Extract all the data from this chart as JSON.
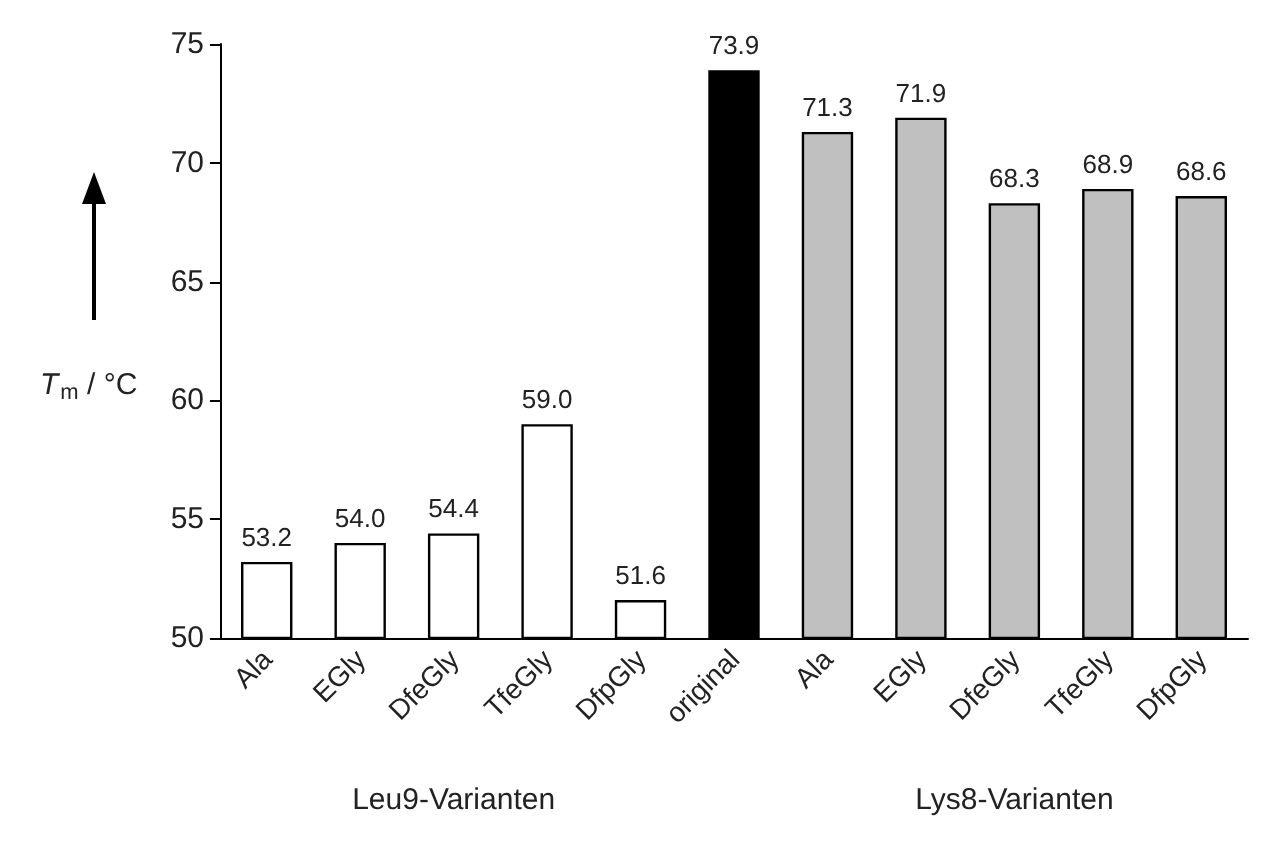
{
  "chart_data": {
    "type": "bar",
    "ylabel": "T$_{m}$ / °C",
    "categories": [
      "Ala",
      "EGly",
      "DfeGly",
      "TfeGly",
      "DfpGly",
      "original",
      "Ala",
      "EGly",
      "DfeGly",
      "TfeGly",
      "DfpGly"
    ],
    "values": [
      53.2,
      54.0,
      54.4,
      59.0,
      51.6,
      73.9,
      71.3,
      71.9,
      68.3,
      68.9,
      68.6
    ],
    "colors": [
      "#ffffff",
      "#ffffff",
      "#ffffff",
      "#ffffff",
      "#ffffff",
      "#000000",
      "#c0c0c0",
      "#c0c0c0",
      "#c0c0c0",
      "#c0c0c0",
      "#c0c0c0"
    ],
    "value_labels": [
      "53.2",
      "54.0",
      "54.4",
      "59.0",
      "51.6",
      "73.9",
      "71.3",
      "71.9",
      "68.3",
      "68.9",
      "68.6"
    ],
    "ylim": [
      50,
      75
    ],
    "yticks": [
      50,
      55,
      60,
      65,
      70,
      75
    ],
    "grid": false,
    "annotations": [
      "Leu9-Varianten",
      "Lys8-Varianten"
    ]
  }
}
